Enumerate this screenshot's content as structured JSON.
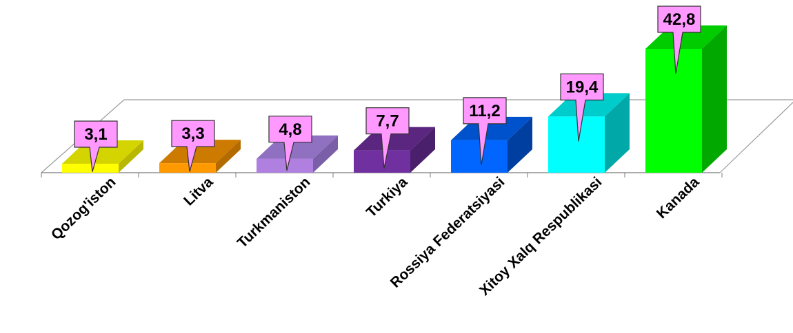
{
  "chart_data": {
    "type": "bar",
    "categories": [
      "Qozog'iston",
      "Litva",
      "Turkmaniston",
      "Turkiya",
      "Rossiya Federatsiyasi",
      "Xitoy Xalq Respublikasi",
      "Kanada"
    ],
    "values": [
      3.1,
      3.3,
      4.8,
      7.7,
      11.2,
      19.4,
      42.8
    ],
    "value_labels": [
      "3,1",
      "3,3",
      "4,8",
      "7,7",
      "11,2",
      "19,4",
      "42,8"
    ],
    "title": "",
    "xlabel": "",
    "ylabel": "",
    "ylim": [
      0,
      42.8
    ],
    "grid": false,
    "legend": "none",
    "three_d": true,
    "bar_colors": [
      {
        "front": "#ffff00",
        "top": "#d4d400",
        "side": "#b8b800"
      },
      {
        "front": "#ff9900",
        "top": "#cc7a00",
        "side": "#b36b00"
      },
      {
        "front": "#b080e0",
        "top": "#9070c0",
        "side": "#7a5fa8"
      },
      {
        "front": "#7030a0",
        "top": "#5a2680",
        "side": "#4a1f6b"
      },
      {
        "front": "#0066ff",
        "top": "#0052cc",
        "side": "#003fa0"
      },
      {
        "front": "#00ffff",
        "top": "#00cccc",
        "side": "#00a8a8"
      },
      {
        "front": "#00ff00",
        "top": "#00cc00",
        "side": "#00a800"
      }
    ],
    "callout_color": "#ff99ff"
  }
}
